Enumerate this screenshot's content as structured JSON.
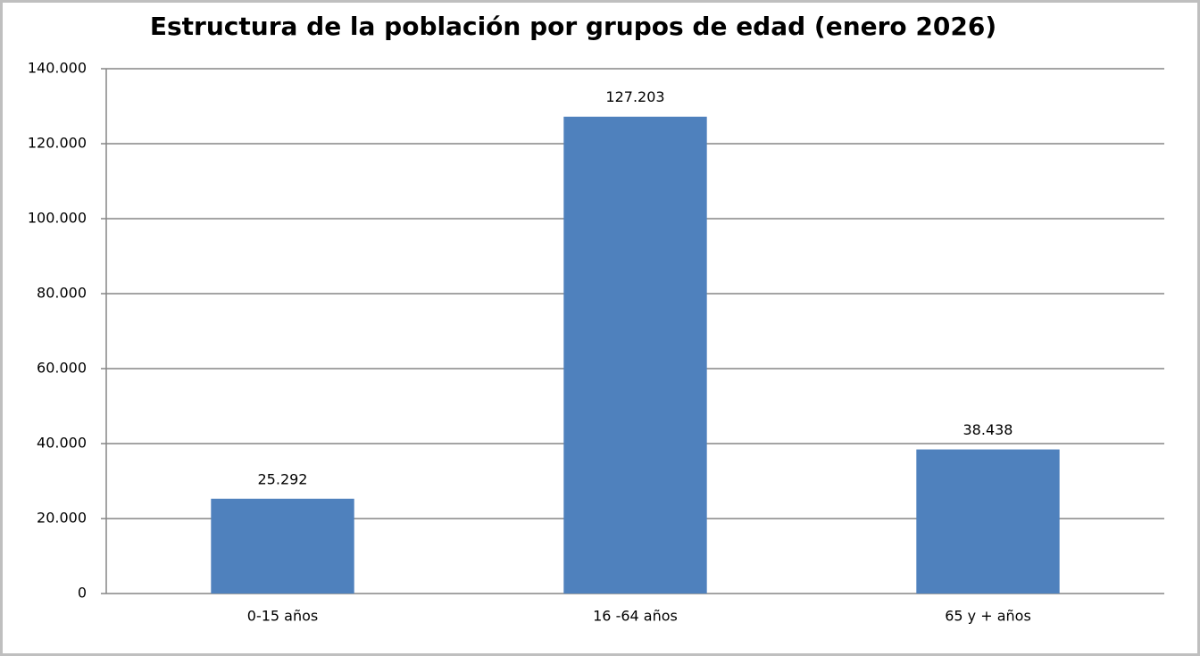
{
  "chart_data": {
    "type": "bar",
    "title": "Estructura de la población por grupos de edad (enero 2026)",
    "categories": [
      "0-15 años",
      "16 -64 años",
      "65 y + años"
    ],
    "values": [
      25292,
      127203,
      38438
    ],
    "value_labels": [
      "25.292",
      "127.203",
      "38.438"
    ],
    "color": "#4f81bd",
    "ylim": [
      0,
      140000
    ],
    "yticks": [
      0,
      {
        "value": 20000,
        "label": "20.000"
      },
      {
        "value": 40000,
        "label": "40.000"
      },
      {
        "value": 60000,
        "label": "60.000"
      },
      {
        "value": 80000,
        "label": "80.000"
      },
      {
        "value": 100000,
        "label": "100.000"
      },
      {
        "value": 120000,
        "label": "120.000"
      },
      {
        "value": 140000,
        "label": "140.000"
      }
    ],
    "grid": true
  }
}
